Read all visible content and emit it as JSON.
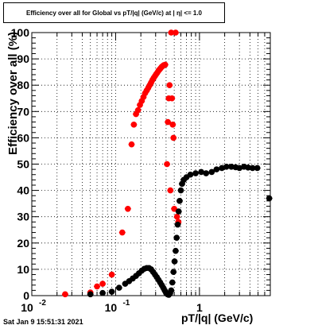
{
  "chart_data": {
    "type": "scatter",
    "title": "Efficiency over all for Global vs pT/|q| (GeV/c) at | η| <= 1.0",
    "xlabel": "pT/|q| (GeV/c)",
    "ylabel": "Efficiency over all (%)",
    "xscale": "log",
    "xlim": [
      0.01,
      7
    ],
    "ylim": [
      0,
      100
    ],
    "grid": true,
    "x_ticks": [
      {
        "value": 0.01,
        "label": "10",
        "sup": "-2"
      },
      {
        "value": 0.1,
        "label": "10",
        "sup": "-1"
      },
      {
        "value": 1,
        "label": "1",
        "sup": ""
      }
    ],
    "y_ticks": [
      {
        "value": 0,
        "label": "0"
      },
      {
        "value": 10,
        "label": "10"
      },
      {
        "value": 20,
        "label": "20"
      },
      {
        "value": 30,
        "label": "30"
      },
      {
        "value": 40,
        "label": "40"
      },
      {
        "value": 50,
        "label": "50"
      },
      {
        "value": 60,
        "label": "60"
      },
      {
        "value": 70,
        "label": "70"
      },
      {
        "value": 80,
        "label": "80"
      },
      {
        "value": 90,
        "label": "90"
      },
      {
        "value": 100,
        "label": "100"
      }
    ],
    "series": [
      {
        "color": "#ff0000",
        "points": [
          [
            0.025,
            0.5
          ],
          [
            0.05,
            1.2
          ],
          [
            0.06,
            3.5
          ],
          [
            0.07,
            4.5
          ],
          [
            0.09,
            8
          ],
          [
            0.12,
            24
          ],
          [
            0.14,
            33
          ],
          [
            0.155,
            57.5
          ],
          [
            0.165,
            65
          ],
          [
            0.175,
            69
          ],
          [
            0.185,
            70.5
          ],
          [
            0.195,
            72.5
          ],
          [
            0.205,
            74
          ],
          [
            0.215,
            75.5
          ],
          [
            0.225,
            77
          ],
          [
            0.235,
            78
          ],
          [
            0.245,
            79
          ],
          [
            0.255,
            80
          ],
          [
            0.265,
            81
          ],
          [
            0.275,
            82
          ],
          [
            0.285,
            82.8
          ],
          [
            0.295,
            83.5
          ],
          [
            0.305,
            84.2
          ],
          [
            0.315,
            84.8
          ],
          [
            0.325,
            85.5
          ],
          [
            0.335,
            86
          ],
          [
            0.345,
            86.5
          ],
          [
            0.355,
            87
          ],
          [
            0.365,
            87.3
          ],
          [
            0.375,
            87.6
          ],
          [
            0.39,
            87.8
          ],
          [
            0.41,
            50
          ],
          [
            0.42,
            66
          ],
          [
            0.43,
            75
          ],
          [
            0.44,
            80
          ],
          [
            0.45,
            40
          ],
          [
            0.46,
            100
          ],
          [
            0.47,
            75
          ],
          [
            0.48,
            65
          ],
          [
            0.49,
            60
          ],
          [
            0.5,
            33
          ],
          [
            0.52,
            100
          ],
          [
            0.54,
            30
          ],
          [
            0.56,
            28
          ]
        ]
      },
      {
        "color": "#000000",
        "points": [
          [
            0.05,
            0.5
          ],
          [
            0.07,
            1
          ],
          [
            0.09,
            1.5
          ],
          [
            0.11,
            3
          ],
          [
            0.13,
            4.5
          ],
          [
            0.145,
            5.5
          ],
          [
            0.16,
            6.5
          ],
          [
            0.175,
            7.5
          ],
          [
            0.19,
            8.5
          ],
          [
            0.205,
            9.5
          ],
          [
            0.22,
            10.2
          ],
          [
            0.235,
            10.5
          ],
          [
            0.25,
            10.5
          ],
          [
            0.265,
            10
          ],
          [
            0.28,
            9
          ],
          [
            0.295,
            8
          ],
          [
            0.31,
            7
          ],
          [
            0.325,
            6
          ],
          [
            0.34,
            5
          ],
          [
            0.355,
            4
          ],
          [
            0.37,
            3
          ],
          [
            0.385,
            2
          ],
          [
            0.4,
            1
          ],
          [
            0.415,
            0.5
          ],
          [
            0.43,
            0.3
          ],
          [
            0.445,
            0.8
          ],
          [
            0.46,
            2
          ],
          [
            0.475,
            5
          ],
          [
            0.49,
            9
          ],
          [
            0.505,
            13
          ],
          [
            0.52,
            17
          ],
          [
            0.535,
            22
          ],
          [
            0.55,
            27
          ],
          [
            0.565,
            32
          ],
          [
            0.58,
            36
          ],
          [
            0.6,
            40
          ],
          [
            0.62,
            42.5
          ],
          [
            0.65,
            44
          ],
          [
            0.7,
            45
          ],
          [
            0.78,
            46
          ],
          [
            0.9,
            46.5
          ],
          [
            1.05,
            47
          ],
          [
            1.2,
            46.5
          ],
          [
            1.4,
            47
          ],
          [
            1.6,
            48
          ],
          [
            1.85,
            48.5
          ],
          [
            2.1,
            49
          ],
          [
            2.4,
            49
          ],
          [
            2.7,
            48.8
          ],
          [
            3.0,
            48.5
          ],
          [
            3.4,
            49
          ],
          [
            3.8,
            48.7
          ],
          [
            4.3,
            48.5
          ],
          [
            4.9,
            48.5
          ],
          [
            6.8,
            37
          ]
        ]
      }
    ]
  },
  "timestamp": "Sat Jan  9 15:51:31 2021"
}
